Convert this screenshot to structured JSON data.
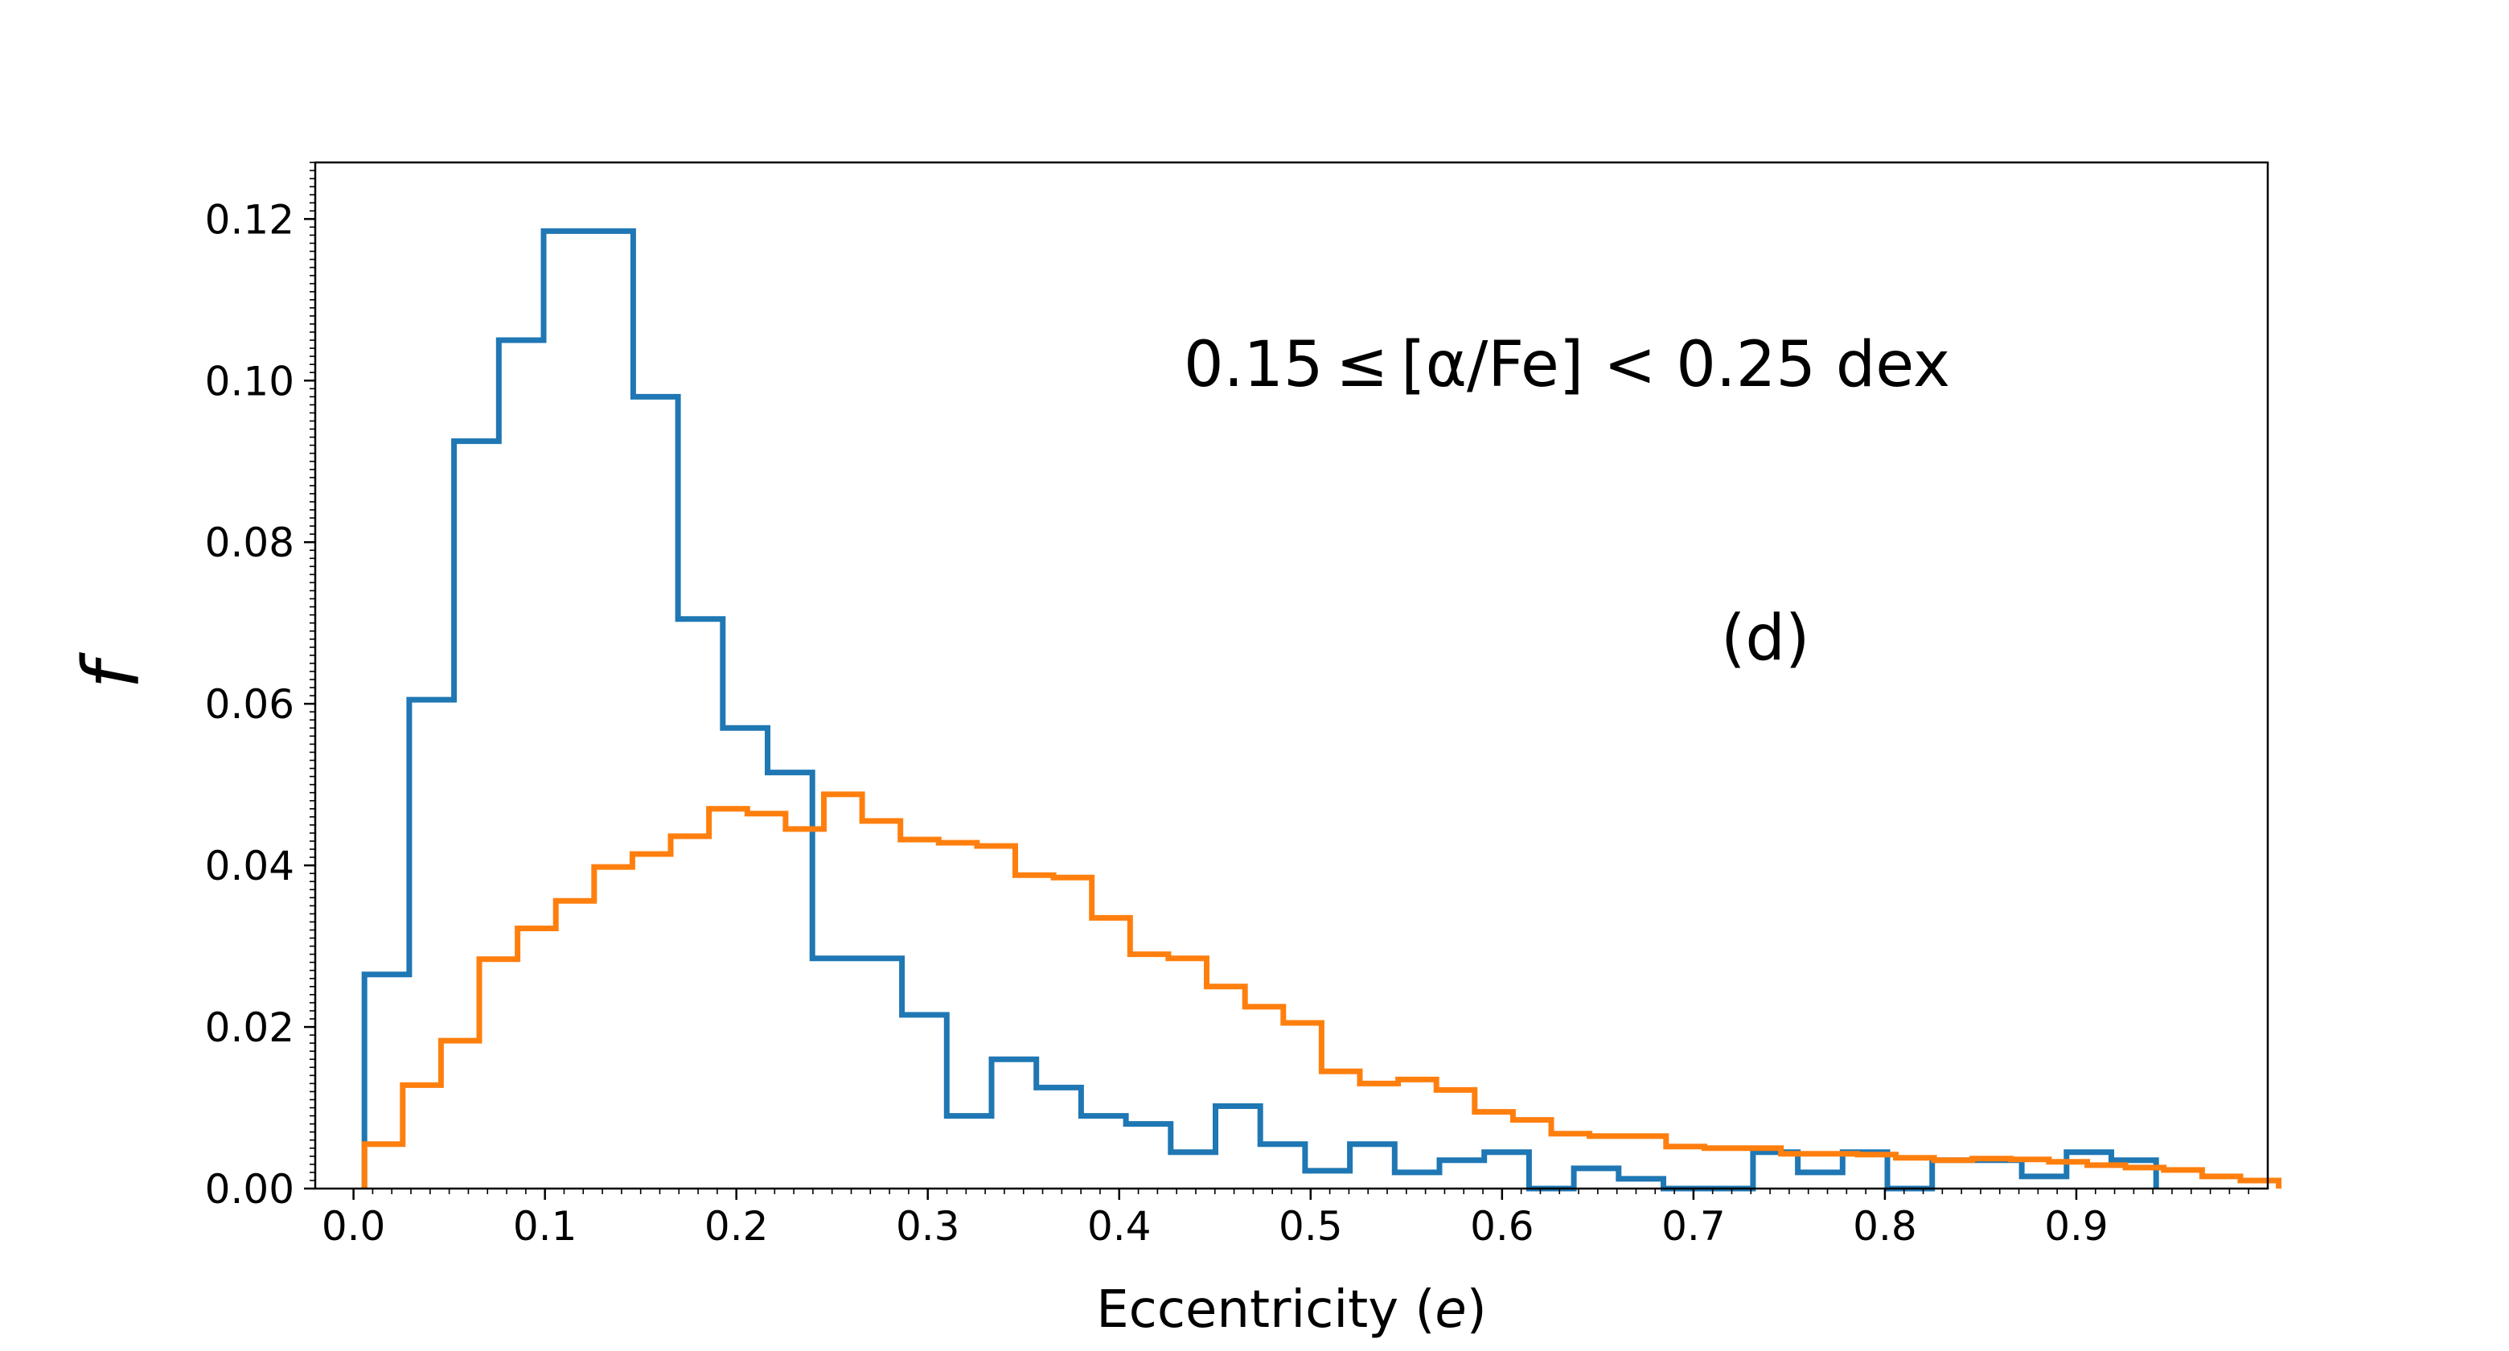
{
  "chart_data": {
    "type": "histogram-step",
    "title": "",
    "xlabel": "Eccentricity (",
    "xlabel_var": "e",
    "xlabel_close": ")",
    "ylabel": "f",
    "xlim": [
      -0.02,
      1.0
    ],
    "ylim": [
      0.0,
      0.127
    ],
    "x_ticks": [
      0.0,
      0.1,
      0.2,
      0.3,
      0.4,
      0.5,
      0.6,
      0.7,
      0.8,
      0.9
    ],
    "x_tick_labels": [
      "0.0",
      "0.1",
      "0.2",
      "0.3",
      "0.4",
      "0.5",
      "0.6",
      "0.7",
      "0.8",
      "0.9"
    ],
    "y_ticks": [
      0.0,
      0.02,
      0.04,
      0.06,
      0.08,
      0.1,
      0.12
    ],
    "y_tick_labels": [
      "0.00",
      "0.02",
      "0.04",
      "0.06",
      "0.08",
      "0.10",
      "0.12"
    ],
    "annotations": {
      "range_label": "0.15 ≤ [α/Fe] < 0.25 dex",
      "panel_label": "(d)"
    },
    "series": [
      {
        "name": "blue",
        "color": "#1f77b4",
        "edges": [
          0.0057,
          0.0291,
          0.0525,
          0.0759,
          0.0993,
          0.1227,
          0.1461,
          0.1695,
          0.1929,
          0.2163,
          0.2397,
          0.2631,
          0.2865,
          0.3099,
          0.3333,
          0.3567,
          0.3801,
          0.4035,
          0.4269,
          0.4503,
          0.4737,
          0.4971,
          0.5205,
          0.5439,
          0.5673,
          0.5907,
          0.6141,
          0.6375,
          0.6609,
          0.6843,
          0.7077,
          0.7311,
          0.7545,
          0.7779,
          0.8013,
          0.8247,
          0.8481,
          0.8715,
          0.8949,
          0.9183,
          0.9417
        ],
        "values": [
          0.0265,
          0.0605,
          0.0925,
          0.105,
          0.1185,
          0.1185,
          0.098,
          0.0705,
          0.057,
          0.0515,
          0.0285,
          0.0285,
          0.0215,
          0.009,
          0.016,
          0.0125,
          0.009,
          0.008,
          0.0045,
          0.0102,
          0.0055,
          0.0022,
          0.0055,
          0.002,
          0.0035,
          0.0045,
          0.0,
          0.0025,
          0.0012,
          0.0,
          0.0,
          0.0045,
          0.002,
          0.0045,
          0.0,
          0.0035,
          0.0035,
          0.0015,
          0.0045,
          0.0035
        ]
      },
      {
        "name": "orange",
        "color": "#ff7f0e",
        "edges": [
          0.0057,
          0.0257,
          0.0457,
          0.0657,
          0.0857,
          0.1057,
          0.1257,
          0.1457,
          0.1657,
          0.1857,
          0.2057,
          0.2257,
          0.2457,
          0.2657,
          0.2857,
          0.3057,
          0.3257,
          0.3457,
          0.3657,
          0.3857,
          0.4057,
          0.4257,
          0.4457,
          0.4657,
          0.4857,
          0.5057,
          0.5257,
          0.5457,
          0.5657,
          0.5857,
          0.6057,
          0.6257,
          0.6457,
          0.6657,
          0.6857,
          0.7057,
          0.7257,
          0.7457,
          0.7657,
          0.7857,
          0.8057,
          0.8257,
          0.8457,
          0.8657,
          0.8857,
          0.9057,
          0.9257,
          0.9457,
          0.9657,
          0.9857,
          1.0057
        ],
        "values": [
          0.0055,
          0.0128,
          0.0183,
          0.0284,
          0.0322,
          0.0356,
          0.0398,
          0.0414,
          0.0436,
          0.047,
          0.0464,
          0.0445,
          0.0488,
          0.0455,
          0.0432,
          0.0428,
          0.0424,
          0.0388,
          0.0385,
          0.0335,
          0.029,
          0.0285,
          0.025,
          0.0225,
          0.0205,
          0.0145,
          0.013,
          0.0135,
          0.0122,
          0.0095,
          0.0085,
          0.0068,
          0.0065,
          0.0065,
          0.0052,
          0.005,
          0.005,
          0.0043,
          0.0043,
          0.0042,
          0.0038,
          0.0035,
          0.0037,
          0.0036,
          0.0033,
          0.0029,
          0.0026,
          0.0023,
          0.0015,
          0.001
        ]
      }
    ]
  }
}
